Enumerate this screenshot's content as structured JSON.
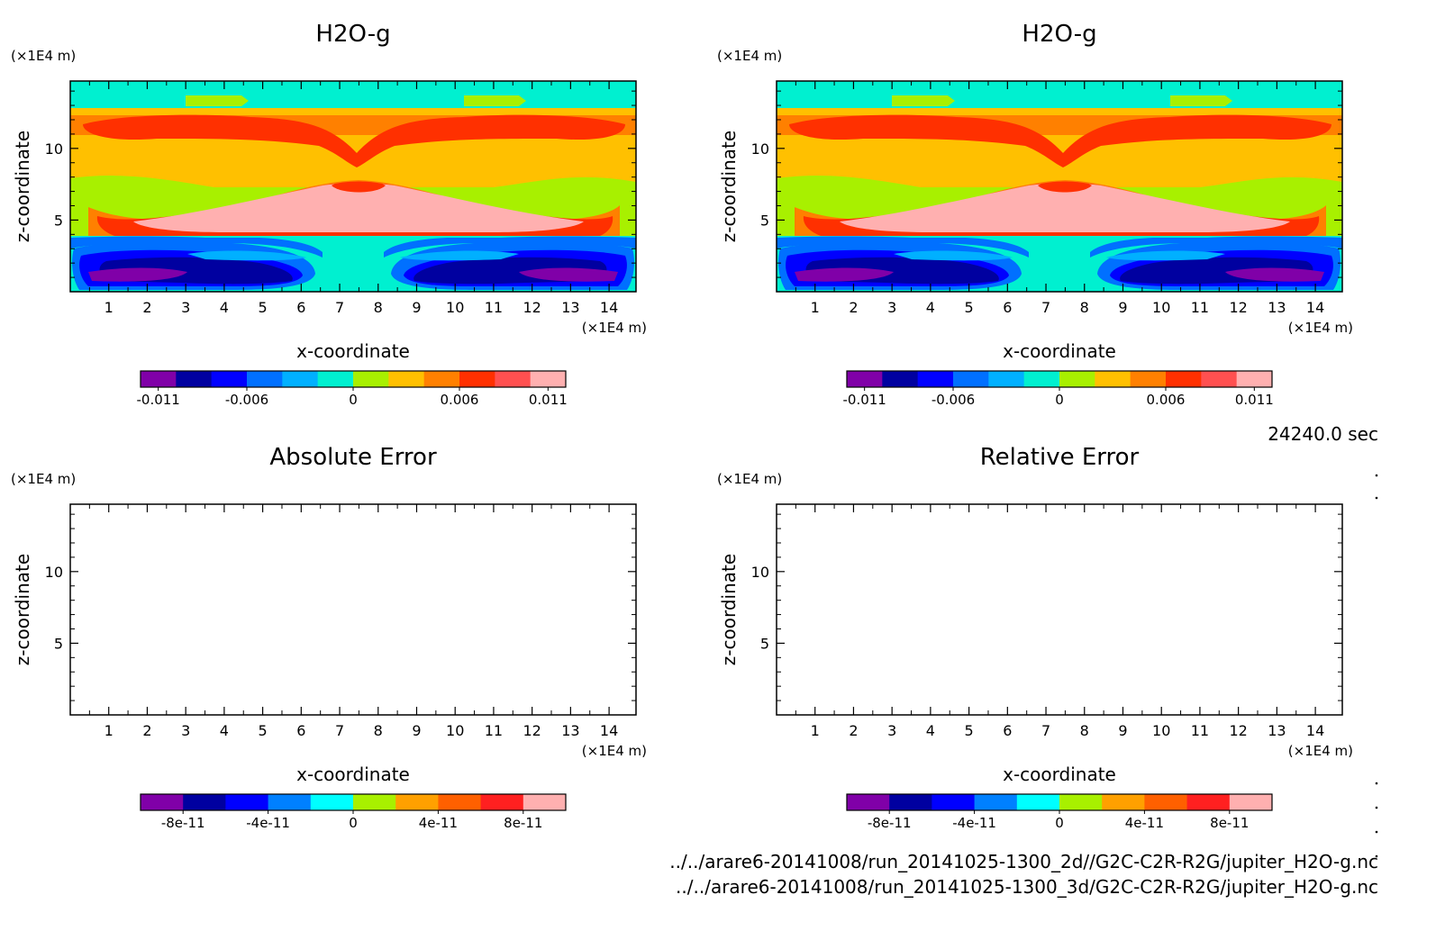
{
  "time_label": "24240.0 sec",
  "file_paths": [
    "../../arare6-20141008/run_20141025-1300_2d//G2C-C2R-R2G/jupiter_H2O-g.nc",
    "../../arare6-20141008/run_20141025-1300_3d/G2C-C2R-R2G/jupiter_H2O-g.nc"
  ],
  "chart_data": [
    {
      "type": "heatmap",
      "title": "H2O-g",
      "xlabel": "x-coordinate",
      "ylabel": "z-coordinate",
      "x_unit": "(×1E4 m)",
      "y_unit": "(×1E4 m)",
      "xlim": [
        0,
        14.7
      ],
      "ylim": [
        0,
        14.7
      ],
      "x_ticks": [
        "1",
        "2",
        "3",
        "4",
        "5",
        "6",
        "7",
        "8",
        "9",
        "10",
        "11",
        "12",
        "13",
        "14"
      ],
      "y_ticks": [
        "5",
        "10"
      ],
      "colorbar": {
        "colors": [
          "#8000a8",
          "#0000a0",
          "#0000ff",
          "#0070ff",
          "#00b0ff",
          "#00f0d0",
          "#a8f000",
          "#ffc000",
          "#ff8000",
          "#ff3000",
          "#ff5050",
          "#ffb0b0"
        ],
        "tick_labels": [
          "-0.011",
          "-0.006",
          "0",
          "0.006",
          "0.011"
        ],
        "tick_values": [
          -0.011,
          -0.006,
          0,
          0.006,
          0.011
        ],
        "range": [
          -0.012,
          0.012
        ]
      }
    },
    {
      "type": "heatmap",
      "title": "H2O-g",
      "xlabel": "x-coordinate",
      "ylabel": "z-coordinate",
      "x_unit": "(×1E4 m)",
      "y_unit": "(×1E4 m)",
      "xlim": [
        0,
        14.7
      ],
      "ylim": [
        0,
        14.7
      ],
      "x_ticks": [
        "1",
        "2",
        "3",
        "4",
        "5",
        "6",
        "7",
        "8",
        "9",
        "10",
        "11",
        "12",
        "13",
        "14"
      ],
      "y_ticks": [
        "5",
        "10"
      ],
      "colorbar": {
        "colors": [
          "#8000a8",
          "#0000a0",
          "#0000ff",
          "#0070ff",
          "#00b0ff",
          "#00f0d0",
          "#a8f000",
          "#ffc000",
          "#ff8000",
          "#ff3000",
          "#ff5050",
          "#ffb0b0"
        ],
        "tick_labels": [
          "-0.011",
          "-0.006",
          "0",
          "0.006",
          "0.011"
        ],
        "tick_values": [
          -0.011,
          -0.006,
          0,
          0.006,
          0.011
        ],
        "range": [
          -0.012,
          0.012
        ]
      }
    },
    {
      "type": "heatmap",
      "title": "Absolute Error",
      "xlabel": "x-coordinate",
      "ylabel": "z-coordinate",
      "x_unit": "(×1E4 m)",
      "y_unit": "(×1E4 m)",
      "xlim": [
        0,
        14.7
      ],
      "ylim": [
        0,
        14.7
      ],
      "x_ticks": [
        "1",
        "2",
        "3",
        "4",
        "5",
        "6",
        "7",
        "8",
        "9",
        "10",
        "11",
        "12",
        "13",
        "14"
      ],
      "y_ticks": [
        "5",
        "10"
      ],
      "colorbar": {
        "colors": [
          "#8000a8",
          "#0000a0",
          "#0000ff",
          "#0080ff",
          "#00ffff",
          "#a8f000",
          "#ffa000",
          "#ff6000",
          "#ff2020",
          "#ffb0b0"
        ],
        "tick_labels": [
          "-8e-11",
          "-4e-11",
          "0",
          "4e-11",
          "8e-11"
        ],
        "tick_values": [
          -8e-11,
          -4e-11,
          0,
          4e-11,
          8e-11
        ],
        "range": [
          -1e-10,
          1e-10
        ]
      }
    },
    {
      "type": "heatmap",
      "title": "Relative Error",
      "xlabel": "x-coordinate",
      "ylabel": "z-coordinate",
      "x_unit": "(×1E4 m)",
      "y_unit": "(×1E4 m)",
      "xlim": [
        0,
        14.7
      ],
      "ylim": [
        0,
        14.7
      ],
      "x_ticks": [
        "1",
        "2",
        "3",
        "4",
        "5",
        "6",
        "7",
        "8",
        "9",
        "10",
        "11",
        "12",
        "13",
        "14"
      ],
      "y_ticks": [
        "5",
        "10"
      ],
      "colorbar": {
        "colors": [
          "#8000a8",
          "#0000a0",
          "#0000ff",
          "#0080ff",
          "#00ffff",
          "#a8f000",
          "#ffa000",
          "#ff6000",
          "#ff2020",
          "#ffb0b0"
        ],
        "tick_labels": [
          "-8e-11",
          "-4e-11",
          "0",
          "4e-11",
          "8e-11"
        ],
        "tick_values": [
          -8e-11,
          -4e-11,
          0,
          4e-11,
          8e-11
        ],
        "range": [
          -1e-10,
          1e-10
        ]
      }
    }
  ]
}
